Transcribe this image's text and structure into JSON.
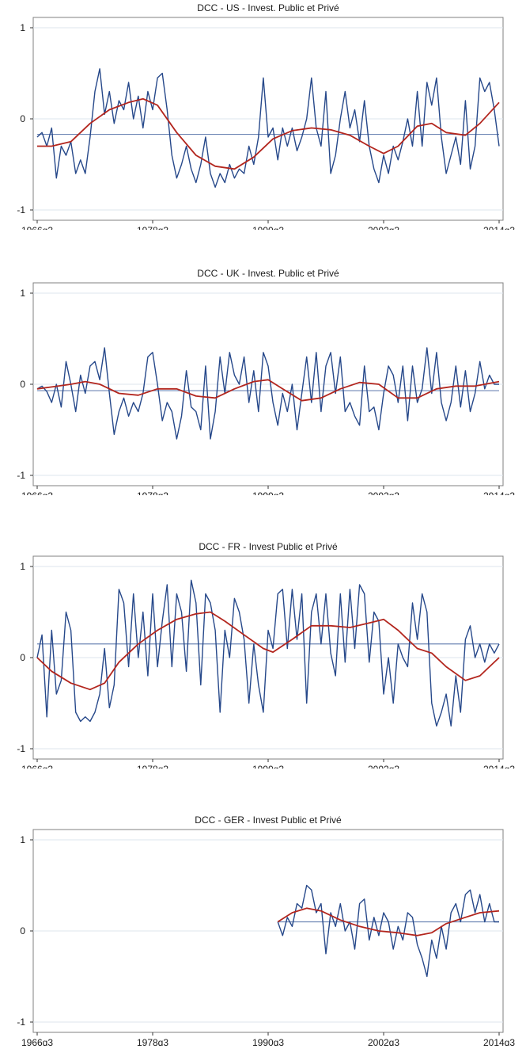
{
  "colors": {
    "series": "#26488a",
    "trend": "#b3261e",
    "mean": "#6e86b5",
    "grid": "#dde5ee",
    "frame": "#808080"
  },
  "chart_data": [
    {
      "type": "line",
      "title": "DCC - US - Invest. Public et Privé",
      "x_ticks": [
        "1966q3",
        "1978q3",
        "1990q3",
        "2002q3",
        "2014q3"
      ],
      "y_ticks": [
        "1",
        "0",
        "-1"
      ],
      "xlim": [
        1966.5,
        2014.5
      ],
      "ylim": [
        -1,
        1
      ],
      "mean": -0.17,
      "series": [
        {
          "x": [
            1966.5,
            1967,
            1967.5,
            1968,
            1968.5,
            1969,
            1969.5,
            1970,
            1970.5,
            1971,
            1971.5,
            1972,
            1972.5,
            1973,
            1973.5,
            1974,
            1974.5,
            1975,
            1975.5,
            1976,
            1976.5,
            1977,
            1977.5,
            1978,
            1978.5,
            1979,
            1979.5,
            1980,
            1980.5,
            1981,
            1981.5,
            1982,
            1982.5,
            1983,
            1983.5,
            1984,
            1984.5,
            1985,
            1985.5,
            1986,
            1986.5,
            1987,
            1987.5,
            1988,
            1988.5,
            1989,
            1989.5,
            1990,
            1990.5,
            1991,
            1991.5,
            1992,
            1992.5,
            1993,
            1993.5,
            1994,
            1994.5,
            1995,
            1995.5,
            1996,
            1996.5,
            1997,
            1997.5,
            1998,
            1998.5,
            1999,
            1999.5,
            2000,
            2000.5,
            2001,
            2001.5,
            2002,
            2002.5,
            2003,
            2003.5,
            2004,
            2004.5,
            2005,
            2005.5,
            2006,
            2006.5,
            2007,
            2007.5,
            2008,
            2008.5,
            2009,
            2009.5,
            2010,
            2010.5,
            2011,
            2011.5,
            2012,
            2012.5,
            2013,
            2013.5,
            2014,
            2014.5
          ],
          "values": [
            -0.2,
            -0.15,
            -0.3,
            -0.1,
            -0.65,
            -0.3,
            -0.4,
            -0.25,
            -0.6,
            -0.45,
            -0.6,
            -0.2,
            0.3,
            0.55,
            0.05,
            0.3,
            -0.05,
            0.2,
            0.1,
            0.4,
            0.0,
            0.25,
            -0.1,
            0.3,
            0.1,
            0.45,
            0.5,
            0.1,
            -0.4,
            -0.65,
            -0.5,
            -0.3,
            -0.55,
            -0.7,
            -0.5,
            -0.2,
            -0.6,
            -0.75,
            -0.6,
            -0.7,
            -0.5,
            -0.65,
            -0.55,
            -0.6,
            -0.3,
            -0.5,
            -0.2,
            0.45,
            -0.2,
            -0.1,
            -0.45,
            -0.1,
            -0.3,
            -0.1,
            -0.35,
            -0.2,
            0.0,
            0.45,
            -0.1,
            -0.3,
            0.3,
            -0.6,
            -0.4,
            0.0,
            0.3,
            -0.1,
            0.1,
            -0.25,
            0.2,
            -0.3,
            -0.55,
            -0.7,
            -0.4,
            -0.6,
            -0.3,
            -0.45,
            -0.25,
            0.0,
            -0.3,
            0.3,
            -0.3,
            0.4,
            0.15,
            0.45,
            -0.2,
            -0.6,
            -0.4,
            -0.2,
            -0.5,
            0.2,
            -0.55,
            -0.3,
            0.45,
            0.3,
            0.4,
            0.1,
            -0.3
          ]
        },
        {
          "x": [
            1966.5,
            1968,
            1970,
            1972,
            1974,
            1976,
            1977.5,
            1979,
            1981,
            1983,
            1985,
            1987,
            1989,
            1991,
            1993,
            1995,
            1997,
            1999,
            2001,
            2002.5,
            2004,
            2006,
            2007.5,
            2009,
            2011,
            2012.5,
            2014.5
          ],
          "values": [
            -0.3,
            -0.3,
            -0.25,
            -0.05,
            0.1,
            0.18,
            0.22,
            0.15,
            -0.15,
            -0.4,
            -0.52,
            -0.55,
            -0.42,
            -0.22,
            -0.13,
            -0.1,
            -0.12,
            -0.18,
            -0.3,
            -0.38,
            -0.3,
            -0.08,
            -0.05,
            -0.15,
            -0.18,
            -0.05,
            0.18
          ]
        }
      ]
    },
    {
      "type": "line",
      "title": "DCC - UK - Invest. Public et Privé",
      "x_ticks": [
        "1966q3",
        "1978q3",
        "1990q3",
        "2002q3",
        "2014q3"
      ],
      "y_ticks": [
        "1",
        "0",
        "-1"
      ],
      "xlim": [
        1966.5,
        2014.5
      ],
      "ylim": [
        -1,
        1
      ],
      "mean": -0.07,
      "series": [
        {
          "x": [
            1966.5,
            1967,
            1967.5,
            1968,
            1968.5,
            1969,
            1969.5,
            1970,
            1970.5,
            1971,
            1971.5,
            1972,
            1972.5,
            1973,
            1973.5,
            1974,
            1974.5,
            1975,
            1975.5,
            1976,
            1976.5,
            1977,
            1977.5,
            1978,
            1978.5,
            1979,
            1979.5,
            1980,
            1980.5,
            1981,
            1981.5,
            1982,
            1982.5,
            1983,
            1983.5,
            1984,
            1984.5,
            1985,
            1985.5,
            1986,
            1986.5,
            1987,
            1987.5,
            1988,
            1988.5,
            1989,
            1989.5,
            1990,
            1990.5,
            1991,
            1991.5,
            1992,
            1992.5,
            1993,
            1993.5,
            1994,
            1994.5,
            1995,
            1995.5,
            1996,
            1996.5,
            1997,
            1997.5,
            1998,
            1998.5,
            1999,
            1999.5,
            2000,
            2000.5,
            2001,
            2001.5,
            2002,
            2002.5,
            2003,
            2003.5,
            2004,
            2004.5,
            2005,
            2005.5,
            2006,
            2006.5,
            2007,
            2007.5,
            2008,
            2008.5,
            2009,
            2009.5,
            2010,
            2010.5,
            2011,
            2011.5,
            2012,
            2012.5,
            2013,
            2013.5,
            2014,
            2014.5
          ],
          "values": [
            -0.05,
            -0.02,
            -0.08,
            -0.2,
            0.0,
            -0.25,
            0.25,
            0.0,
            -0.3,
            0.1,
            -0.1,
            0.2,
            0.25,
            0.05,
            0.4,
            -0.1,
            -0.55,
            -0.3,
            -0.15,
            -0.35,
            -0.2,
            -0.3,
            -0.1,
            0.3,
            0.35,
            0.0,
            -0.4,
            -0.2,
            -0.3,
            -0.6,
            -0.35,
            0.15,
            -0.25,
            -0.3,
            -0.5,
            0.2,
            -0.6,
            -0.3,
            0.3,
            -0.1,
            0.35,
            0.1,
            0.0,
            0.3,
            -0.2,
            0.15,
            -0.3,
            0.35,
            0.2,
            -0.2,
            -0.45,
            -0.1,
            -0.3,
            0.0,
            -0.5,
            -0.1,
            0.3,
            -0.2,
            0.35,
            -0.3,
            0.2,
            0.35,
            -0.1,
            0.3,
            -0.3,
            -0.2,
            -0.35,
            -0.45,
            0.2,
            -0.3,
            -0.25,
            -0.5,
            -0.1,
            0.2,
            0.1,
            -0.2,
            0.2,
            -0.4,
            0.2,
            -0.2,
            -0.05,
            0.4,
            -0.1,
            0.35,
            -0.2,
            -0.4,
            -0.2,
            0.2,
            -0.25,
            0.15,
            -0.3,
            -0.1,
            0.25,
            -0.05,
            0.1,
            0.0,
            0.0
          ]
        },
        {
          "x": [
            1966.5,
            1968,
            1970,
            1971.5,
            1973,
            1975,
            1977,
            1979,
            1981,
            1983,
            1985,
            1987,
            1989,
            1990.5,
            1992,
            1994,
            1996,
            1998,
            2000,
            2002,
            2004,
            2006,
            2008,
            2010,
            2012,
            2014.5
          ],
          "values": [
            -0.05,
            -0.03,
            0.0,
            0.03,
            0.0,
            -0.1,
            -0.12,
            -0.05,
            -0.05,
            -0.13,
            -0.15,
            -0.05,
            0.03,
            0.05,
            -0.05,
            -0.18,
            -0.15,
            -0.05,
            0.02,
            0.0,
            -0.15,
            -0.15,
            -0.05,
            -0.02,
            -0.02,
            0.03
          ]
        }
      ]
    },
    {
      "type": "line",
      "title": "DCC - FR - Invest Public et Privé",
      "x_ticks": [
        "1966q3",
        "1978q3",
        "1990q3",
        "2002q3",
        "2014q3"
      ],
      "y_ticks": [
        "1",
        "0",
        "-1"
      ],
      "xlim": [
        1966.5,
        2014.5
      ],
      "ylim": [
        -1,
        1
      ],
      "mean": 0.15,
      "series": [
        {
          "x": [
            1966.5,
            1967,
            1967.5,
            1968,
            1968.5,
            1969,
            1969.5,
            1970,
            1970.5,
            1971,
            1971.5,
            1972,
            1972.5,
            1973,
            1973.5,
            1974,
            1974.5,
            1975,
            1975.5,
            1976,
            1976.5,
            1977,
            1977.5,
            1978,
            1978.5,
            1979,
            1979.5,
            1980,
            1980.5,
            1981,
            1981.5,
            1982,
            1982.5,
            1983,
            1983.5,
            1984,
            1984.5,
            1985,
            1985.5,
            1986,
            1986.5,
            1987,
            1987.5,
            1988,
            1988.5,
            1989,
            1989.5,
            1990,
            1990.5,
            1991,
            1991.5,
            1992,
            1992.5,
            1993,
            1993.5,
            1994,
            1994.5,
            1995,
            1995.5,
            1996,
            1996.5,
            1997,
            1997.5,
            1998,
            1998.5,
            1999,
            1999.5,
            2000,
            2000.5,
            2001,
            2001.5,
            2002,
            2002.5,
            2003,
            2003.5,
            2004,
            2004.5,
            2005,
            2005.5,
            2006,
            2006.5,
            2007,
            2007.5,
            2008,
            2008.5,
            2009,
            2009.5,
            2010,
            2010.5,
            2011,
            2011.5,
            2012,
            2012.5,
            2013,
            2013.5,
            2014,
            2014.5
          ],
          "values": [
            0.0,
            0.25,
            -0.65,
            0.3,
            -0.4,
            -0.25,
            0.5,
            0.3,
            -0.6,
            -0.7,
            -0.65,
            -0.7,
            -0.6,
            -0.4,
            0.1,
            -0.55,
            -0.3,
            0.75,
            0.6,
            -0.1,
            0.7,
            0.0,
            0.5,
            -0.2,
            0.7,
            -0.1,
            0.4,
            0.8,
            -0.1,
            0.7,
            0.5,
            -0.15,
            0.85,
            0.6,
            -0.3,
            0.7,
            0.6,
            0.3,
            -0.6,
            0.3,
            0.0,
            0.65,
            0.5,
            0.2,
            -0.5,
            0.15,
            -0.3,
            -0.6,
            0.3,
            0.1,
            0.7,
            0.75,
            0.1,
            0.75,
            0.2,
            0.7,
            -0.5,
            0.5,
            0.7,
            0.15,
            0.7,
            0.05,
            -0.2,
            0.7,
            -0.05,
            0.75,
            0.1,
            0.8,
            0.7,
            -0.05,
            0.5,
            0.4,
            -0.4,
            0.0,
            -0.5,
            0.15,
            0.0,
            -0.1,
            0.6,
            0.2,
            0.7,
            0.5,
            -0.5,
            -0.75,
            -0.6,
            -0.4,
            -0.75,
            -0.2,
            -0.6,
            0.2,
            0.35,
            0.0,
            0.15,
            -0.05,
            0.15,
            0.05,
            0.15
          ]
        },
        {
          "x": [
            1966.5,
            1968,
            1970,
            1972,
            1973.5,
            1975,
            1977,
            1979,
            1981,
            1983,
            1984.5,
            1986,
            1988,
            1990,
            1991,
            1993,
            1995,
            1997,
            1999,
            2001,
            2002.5,
            2004,
            2006,
            2007.5,
            2009,
            2011,
            2012.5,
            2014.5
          ],
          "values": [
            0.0,
            -0.15,
            -0.28,
            -0.35,
            -0.28,
            -0.05,
            0.15,
            0.3,
            0.42,
            0.48,
            0.5,
            0.4,
            0.25,
            0.1,
            0.06,
            0.2,
            0.35,
            0.35,
            0.33,
            0.38,
            0.42,
            0.3,
            0.1,
            0.05,
            -0.1,
            -0.25,
            -0.2,
            0.0
          ]
        }
      ]
    },
    {
      "type": "line",
      "title": "DCC - GER - Invest Public et Privé",
      "x_ticks": [
        "1966q3",
        "1978q3",
        "1990q3",
        "2002q3",
        "2014q3"
      ],
      "y_ticks": [
        "1",
        "0",
        "-1"
      ],
      "xlim": [
        1966.5,
        2014.5
      ],
      "ylim": [
        -1,
        1
      ],
      "mean": 0.1,
      "mean_from": 1991.5,
      "series": [
        {
          "x": [
            1991.5,
            1992,
            1992.5,
            1993,
            1993.5,
            1994,
            1994.5,
            1995,
            1995.5,
            1996,
            1996.5,
            1997,
            1997.5,
            1998,
            1998.5,
            1999,
            1999.5,
            2000,
            2000.5,
            2001,
            2001.5,
            2002,
            2002.5,
            2003,
            2003.5,
            2004,
            2004.5,
            2005,
            2005.5,
            2006,
            2006.5,
            2007,
            2007.5,
            2008,
            2008.5,
            2009,
            2009.5,
            2010,
            2010.5,
            2011,
            2011.5,
            2012,
            2012.5,
            2013,
            2013.5,
            2014,
            2014.5
          ],
          "values": [
            0.1,
            -0.05,
            0.15,
            0.05,
            0.3,
            0.25,
            0.5,
            0.45,
            0.2,
            0.3,
            -0.25,
            0.2,
            0.05,
            0.3,
            0.0,
            0.1,
            -0.2,
            0.3,
            0.35,
            -0.1,
            0.15,
            -0.05,
            0.2,
            0.1,
            -0.2,
            0.05,
            -0.1,
            0.2,
            0.15,
            -0.15,
            -0.3,
            -0.5,
            -0.1,
            -0.3,
            0.05,
            -0.2,
            0.2,
            0.3,
            0.1,
            0.4,
            0.45,
            0.2,
            0.4,
            0.1,
            0.3,
            0.1,
            0.1
          ]
        },
        {
          "x": [
            1991.5,
            1993,
            1994.5,
            1996,
            1998,
            2000,
            2002,
            2004,
            2006,
            2007.5,
            2009,
            2011,
            2012.5,
            2014.5
          ],
          "values": [
            0.1,
            0.2,
            0.25,
            0.22,
            0.12,
            0.05,
            0.0,
            -0.02,
            -0.05,
            -0.02,
            0.08,
            0.15,
            0.2,
            0.22
          ]
        }
      ]
    }
  ]
}
